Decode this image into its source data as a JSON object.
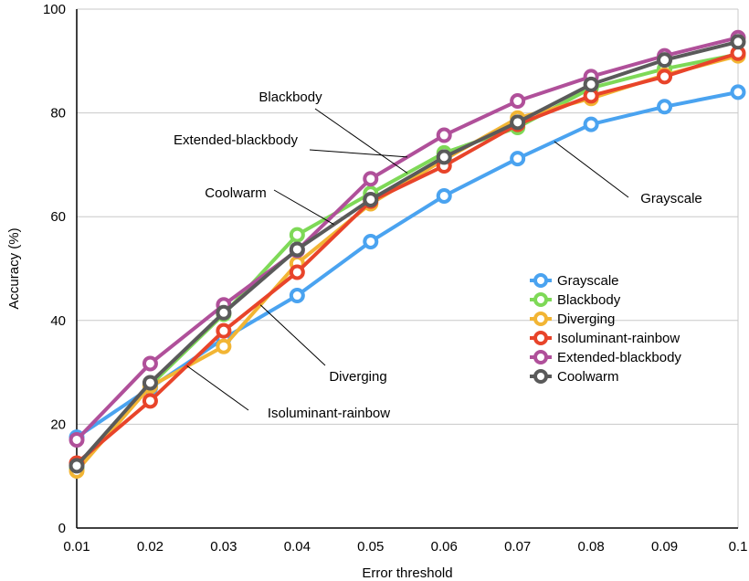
{
  "chart_data": {
    "type": "line",
    "xlabel": "Error threshold",
    "ylabel": "Accuracy (%)",
    "x": [
      0.01,
      0.02,
      0.03,
      0.04,
      0.05,
      0.06,
      0.07,
      0.08,
      0.09,
      0.1
    ],
    "x_tick_labels": [
      "0.01",
      "0.02",
      "0.03",
      "0.04",
      "0.05",
      "0.06",
      "0.07",
      "0.08",
      "0.09",
      "0.1"
    ],
    "ylim": [
      0,
      100
    ],
    "y_ticks": [
      0,
      20,
      40,
      60,
      80,
      100
    ],
    "y_tick_labels": [
      "0",
      "20",
      "40",
      "60",
      "80",
      "100"
    ],
    "grid": true,
    "legend_position": "right-middle",
    "series": [
      {
        "name": "Grayscale",
        "color": "#4aa3f0",
        "values": [
          17.5,
          27.0,
          36.5,
          44.8,
          55.2,
          64.0,
          71.2,
          77.8,
          81.2,
          84.0
        ]
      },
      {
        "name": "Blackbody",
        "color": "#7ed957",
        "values": [
          11.5,
          27.5,
          41.2,
          56.5,
          64.5,
          72.3,
          77.2,
          84.8,
          88.5,
          91.3
        ]
      },
      {
        "name": "Diverging",
        "color": "#f2b534",
        "values": [
          11.0,
          27.3,
          35.0,
          51.0,
          62.5,
          71.0,
          79.0,
          82.8,
          87.3,
          91.0
        ]
      },
      {
        "name": "Isoluminant-rainbow",
        "color": "#e8442a",
        "values": [
          12.5,
          24.5,
          38.0,
          49.3,
          63.0,
          69.8,
          77.8,
          83.3,
          87.0,
          91.5
        ]
      },
      {
        "name": "Extended-blackbody",
        "color": "#b0509a",
        "values": [
          17.0,
          31.7,
          43.0,
          53.5,
          67.3,
          75.7,
          82.3,
          87.0,
          91.0,
          94.5
        ]
      },
      {
        "name": "Coolwarm",
        "color": "#5a5a5a",
        "values": [
          12.0,
          28.0,
          41.5,
          53.7,
          63.3,
          71.5,
          78.2,
          85.5,
          90.2,
          93.7
        ]
      }
    ],
    "annotations": [
      {
        "text": "Blackbody",
        "target_series": "Blackbody",
        "target_x": 0.05
      },
      {
        "text": "Extended-blackbody",
        "target_series": "Extended-blackbody",
        "target_x": 0.05
      },
      {
        "text": "Coolwarm",
        "target_series": "Coolwarm",
        "target_x": 0.04
      },
      {
        "text": "Grayscale",
        "target_series": "Grayscale",
        "target_x": 0.07
      },
      {
        "text": "Diverging",
        "target_series": "Diverging",
        "target_x": 0.03
      },
      {
        "text": "Isoluminant-rainbow",
        "target_series": "Isoluminant-rainbow",
        "target_x": 0.02
      }
    ]
  }
}
